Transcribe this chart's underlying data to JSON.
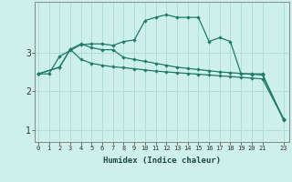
{
  "xlabel": "Humidex (Indice chaleur)",
  "background_color": "#cef0ea",
  "grid_color": "#b0ddd6",
  "line_color": "#1e7a66",
  "x_ticks": [
    0,
    1,
    2,
    3,
    4,
    5,
    6,
    7,
    8,
    9,
    10,
    11,
    12,
    13,
    14,
    15,
    16,
    17,
    18,
    19,
    20,
    21,
    23
  ],
  "ylim": [
    0.7,
    4.3
  ],
  "xlim": [
    -0.3,
    23.5
  ],
  "line1_x": [
    0,
    1,
    2,
    3,
    4,
    5,
    6,
    7,
    8,
    9,
    10,
    11,
    12,
    13,
    14,
    15,
    16,
    17,
    18,
    19,
    20,
    21,
    23
  ],
  "line1_y": [
    2.45,
    2.45,
    2.9,
    3.05,
    3.2,
    3.22,
    3.22,
    3.18,
    3.28,
    3.32,
    3.82,
    3.9,
    3.97,
    3.9,
    3.9,
    3.9,
    3.28,
    3.38,
    3.28,
    2.45,
    2.45,
    2.45,
    1.25
  ],
  "line2_x": [
    0,
    2,
    3,
    4,
    5,
    6,
    7,
    8,
    9,
    10,
    11,
    12,
    13,
    14,
    15,
    16,
    17,
    18,
    19,
    20,
    21,
    23
  ],
  "line2_y": [
    2.45,
    2.62,
    3.08,
    2.82,
    2.72,
    2.67,
    2.63,
    2.61,
    2.58,
    2.55,
    2.52,
    2.5,
    2.48,
    2.46,
    2.44,
    2.42,
    2.4,
    2.38,
    2.36,
    2.34,
    2.32,
    1.28
  ],
  "line3_x": [
    0,
    2,
    3,
    4,
    5,
    6,
    7,
    8,
    9,
    10,
    11,
    12,
    13,
    14,
    15,
    16,
    17,
    18,
    19,
    20,
    21,
    23
  ],
  "line3_y": [
    2.45,
    2.62,
    3.08,
    3.22,
    3.12,
    3.07,
    3.07,
    2.87,
    2.82,
    2.77,
    2.72,
    2.67,
    2.62,
    2.59,
    2.56,
    2.53,
    2.5,
    2.48,
    2.46,
    2.44,
    2.42,
    1.28
  ]
}
